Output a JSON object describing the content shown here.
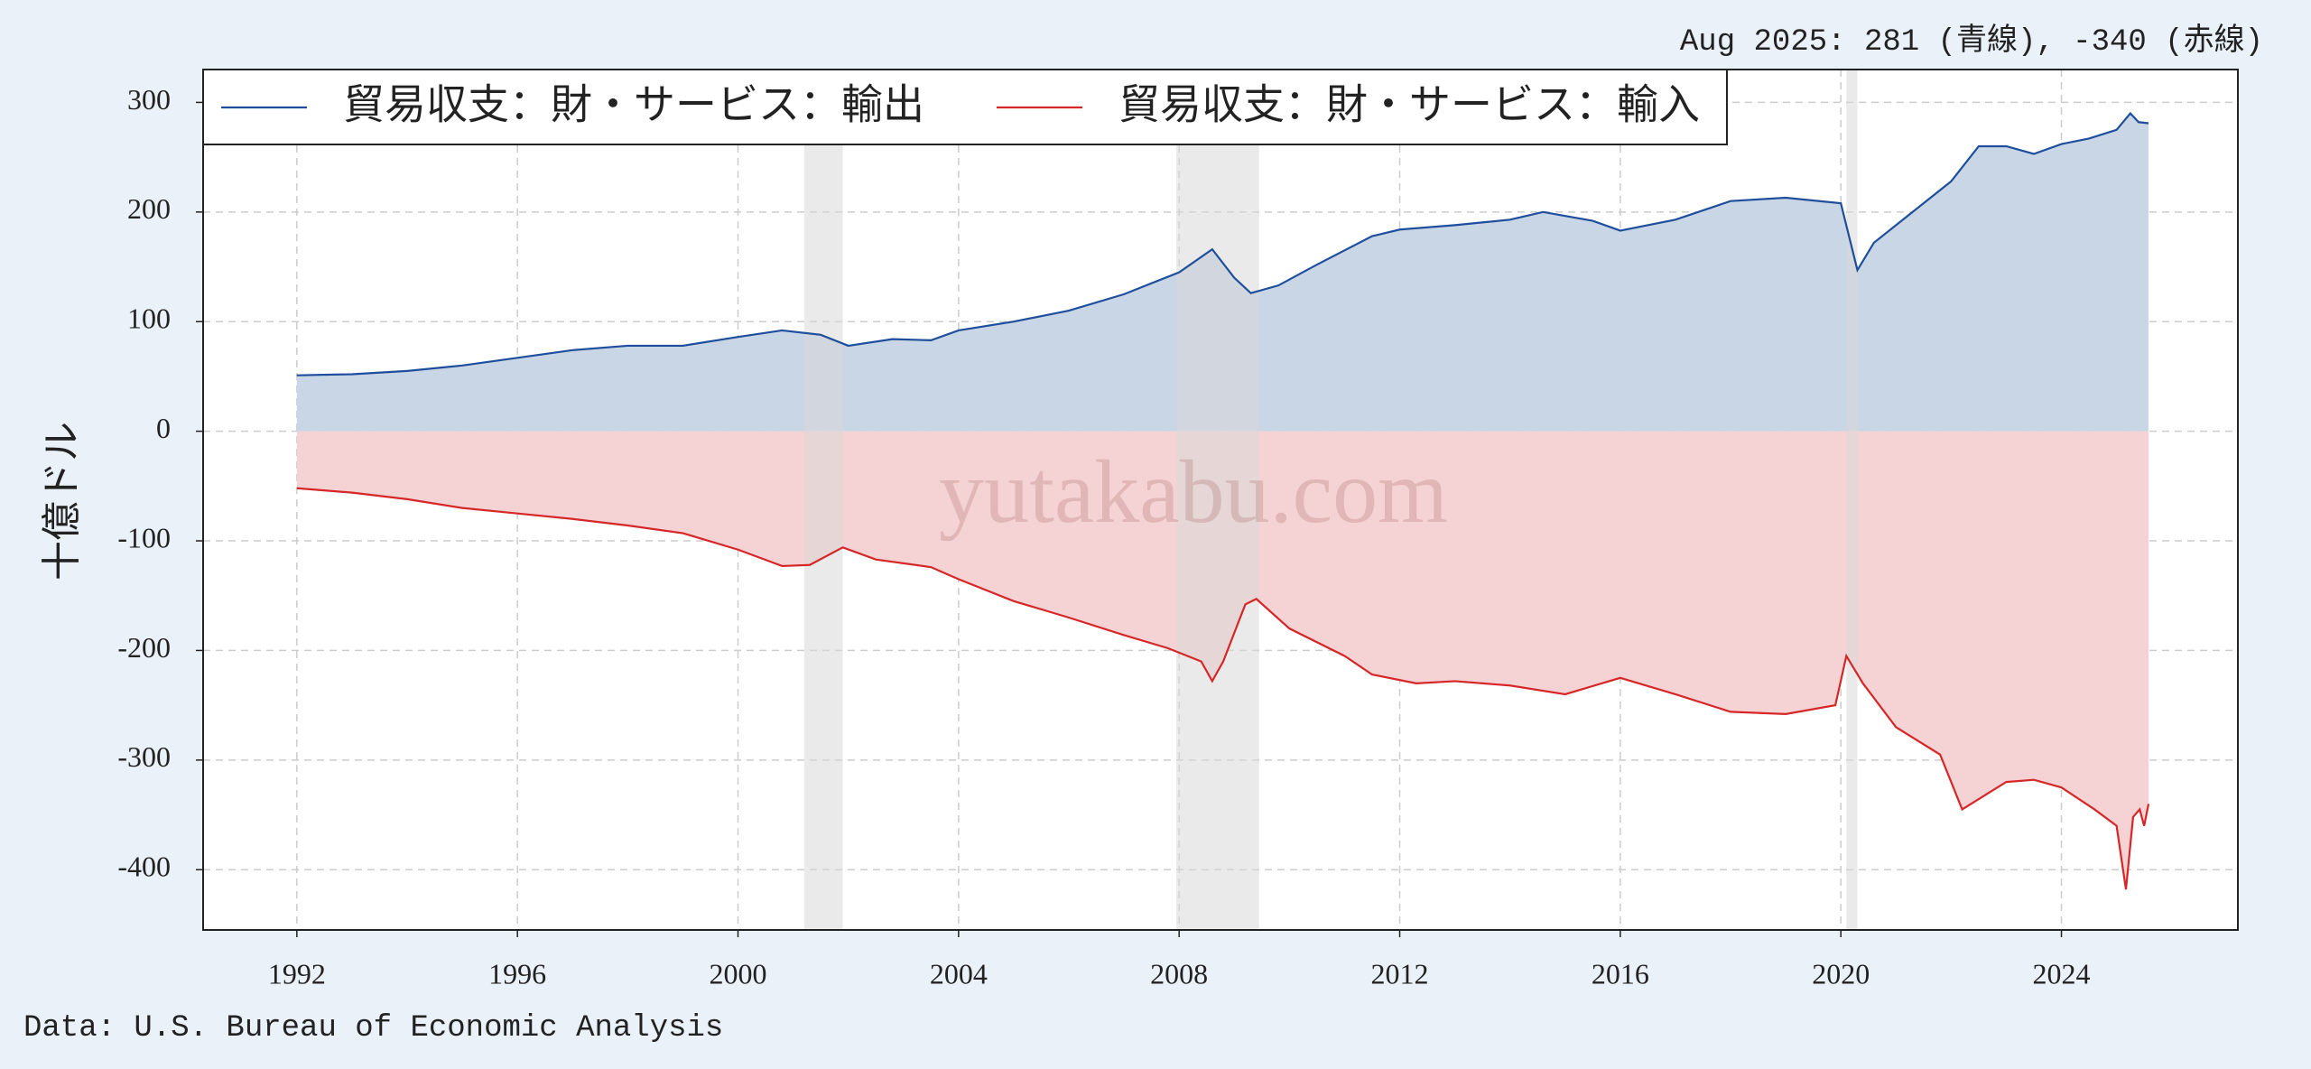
{
  "chart_data": {
    "type": "area",
    "annotation": "Aug 2025: 281 (青線), -340 (赤線)",
    "ylabel": "十億ドル",
    "watermark": "yutakabu.com",
    "source": "Data: U.S. Bureau of Economic Analysis",
    "xlim": [
      1990.3,
      2027.2
    ],
    "xticks": [
      1992,
      1996,
      2000,
      2004,
      2008,
      2012,
      2016,
      2020,
      2024
    ],
    "ylim": [
      -455,
      330
    ],
    "yticks": [
      300,
      200,
      100,
      0,
      -100,
      -200,
      -300,
      -400
    ],
    "grid": true,
    "legend_loc": "upper left",
    "recessions": [
      [
        2001.2,
        2001.9
      ],
      [
        2007.95,
        2009.45
      ],
      [
        2020.1,
        2020.3
      ]
    ],
    "recession_color": "#d9d9d9",
    "series": [
      {
        "name": "貿易収支：財・サービス：輸出",
        "color": "#1f4e9c",
        "fill_color": "#c9d6e6",
        "x": [
          1992.0,
          1993,
          1994,
          1995,
          1996,
          1997,
          1998,
          1999,
          2000,
          2000.8,
          2001.5,
          2002.0,
          2002.8,
          2003.5,
          2004,
          2005,
          2006,
          2007,
          2008,
          2008.6,
          2009.0,
          2009.3,
          2009.8,
          2010.5,
          2011.5,
          2012,
          2013,
          2014,
          2014.6,
          2015.5,
          2016.0,
          2017,
          2018,
          2019,
          2020.0,
          2020.3,
          2020.6,
          2021,
          2021.5,
          2022,
          2022.5,
          2023,
          2023.5,
          2024,
          2024.5,
          2025.0,
          2025.25,
          2025.4,
          2025.58
        ],
        "values": [
          51,
          52,
          55,
          60,
          67,
          74,
          78,
          78,
          86,
          92,
          88,
          78,
          84,
          83,
          92,
          100,
          110,
          125,
          145,
          166,
          140,
          126,
          133,
          152,
          178,
          184,
          188,
          193,
          200,
          192,
          183,
          193,
          210,
          213,
          208,
          147,
          172,
          188,
          208,
          228,
          260,
          260,
          253,
          262,
          267,
          275,
          290,
          282,
          281
        ]
      },
      {
        "name": "貿易収支：財・サービス：輸入",
        "color": "#d62728",
        "fill_color": "#f5d2d3",
        "x": [
          1992.0,
          1993,
          1994,
          1995,
          1996,
          1997,
          1998,
          1999,
          2000,
          2000.8,
          2001.3,
          2001.9,
          2002.5,
          2003.5,
          2004,
          2005,
          2006,
          2007,
          2007.8,
          2008.4,
          2008.6,
          2008.8,
          2009.2,
          2009.4,
          2010,
          2011,
          2011.5,
          2012.3,
          2013,
          2014,
          2015,
          2016,
          2017,
          2018,
          2019,
          2019.9,
          2020.1,
          2020.4,
          2021,
          2021.8,
          2022.2,
          2023,
          2023.5,
          2024,
          2024.6,
          2025.0,
          2025.17,
          2025.3,
          2025.42,
          2025.5,
          2025.58
        ],
        "values": [
          -52,
          -56,
          -62,
          -70,
          -75,
          -80,
          -86,
          -93,
          -108,
          -123,
          -122,
          -106,
          -117,
          -124,
          -135,
          -155,
          -170,
          -186,
          -198,
          -210,
          -228,
          -210,
          -158,
          -153,
          -180,
          -205,
          -222,
          -230,
          -228,
          -232,
          -240,
          -225,
          -240,
          -256,
          -258,
          -250,
          -205,
          -230,
          -270,
          -295,
          -345,
          -320,
          -318,
          -325,
          -345,
          -360,
          -418,
          -352,
          -345,
          -360,
          -340
        ]
      }
    ]
  }
}
